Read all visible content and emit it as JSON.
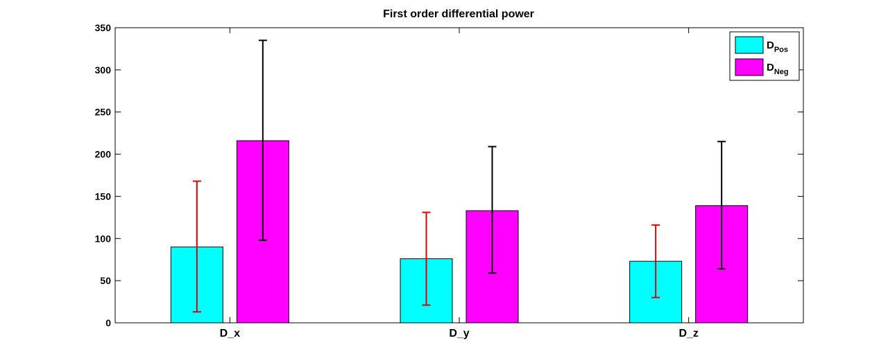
{
  "chart_data": {
    "type": "bar",
    "title": "First order differential power",
    "xlabel": "",
    "ylabel": "",
    "categories": [
      "D_x",
      "D_y",
      "D_z"
    ],
    "ylim": [
      0,
      350
    ],
    "yticks": [
      0,
      50,
      100,
      150,
      200,
      250,
      300,
      350
    ],
    "grid": false,
    "legend_position": "top-right",
    "series": [
      {
        "name": "D_Pos",
        "legend_main": "D",
        "legend_sub": "Pos",
        "color": "#00ffff",
        "errorbar_color": "#dd0000",
        "values": [
          90,
          76,
          73
        ],
        "error_low": [
          13,
          21,
          30
        ],
        "error_high": [
          168,
          131,
          116
        ]
      },
      {
        "name": "D_Neg",
        "legend_main": "D",
        "legend_sub": "Neg",
        "color": "#ff00ff",
        "errorbar_color": "#000000",
        "values": [
          216,
          133,
          139
        ],
        "error_low": [
          98,
          59,
          64
        ],
        "error_high": [
          335,
          209,
          215
        ]
      }
    ]
  }
}
